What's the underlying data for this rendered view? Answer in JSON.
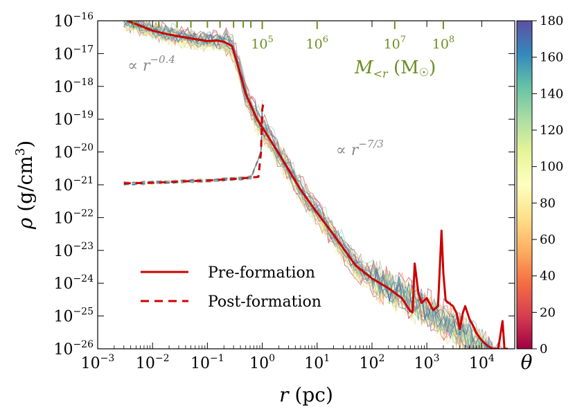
{
  "chart_data": {
    "type": "line",
    "xlabel": "r (pc)",
    "ylabel": "ρ (g/cm³)",
    "xscale": "log",
    "yscale": "log",
    "xlim": [
      0.001,
      40000
    ],
    "ylim": [
      1e-26,
      1e-16
    ],
    "x_ticks": [
      0.001,
      0.01,
      0.1,
      1,
      10,
      100,
      1000,
      10000
    ],
    "x_tick_exponents": [
      "−3",
      "−2",
      "−1",
      "0",
      "1",
      "2",
      "3",
      "4"
    ],
    "y_ticks": [
      1e-26,
      1e-25,
      1e-24,
      1e-23,
      1e-22,
      1e-21,
      1e-20,
      1e-19,
      1e-18,
      1e-17,
      1e-16
    ],
    "y_tick_exponents": [
      "−26",
      "−25",
      "−24",
      "−23",
      "−22",
      "−21",
      "−20",
      "−19",
      "−18",
      "−17",
      "−16"
    ],
    "top_axis": {
      "label": "M<r (M☉)",
      "color": "#6b8e23",
      "ticks": [
        {
          "label_exp": "5",
          "r": 1.0
        },
        {
          "label_exp": "6",
          "r": 10.0
        },
        {
          "label_exp": "7",
          "r": 260
        },
        {
          "label_exp": "8",
          "r": 2000
        }
      ],
      "minor_tick_r": [
        0.0045,
        0.013,
        0.028,
        0.05,
        0.1,
        0.17,
        0.3,
        0.45,
        0.62
      ]
    },
    "colorbar": {
      "label": "θ",
      "min": 0,
      "max": 180,
      "ticks": [
        0,
        20,
        40,
        60,
        80,
        100,
        120,
        140,
        160,
        180
      ],
      "colormap": "Spectral"
    },
    "annotations": [
      {
        "text_prefix": "∝ r",
        "text_exp": "−0.4",
        "x": 0.0035,
        "y": 3e-18
      },
      {
        "text_prefix": "∝ r",
        "text_exp": "−7/3",
        "x": 22,
        "y": 8e-21
      }
    ],
    "legend": {
      "position": "lower-left",
      "entries": [
        {
          "label": "Pre-formation",
          "style": "solid",
          "color": "#cc0000"
        },
        {
          "label": "Post-formation",
          "style": "dashed",
          "color": "#cc0000"
        }
      ]
    },
    "series": [
      {
        "name": "Pre-formation",
        "style": "solid",
        "color": "#cc0000",
        "x": [
          0.0035,
          0.006,
          0.01,
          0.02,
          0.05,
          0.1,
          0.15,
          0.2,
          0.28,
          0.35,
          0.5,
          0.8,
          1.2,
          2,
          5,
          10,
          20,
          50,
          100,
          200,
          350,
          500,
          550,
          600,
          700,
          800,
          1000,
          1300,
          1600,
          1850,
          2000,
          2200,
          2500,
          3000,
          3500,
          4000,
          4500,
          5000,
          6000,
          7000,
          8000,
          10000,
          13000,
          16000,
          20000,
          24000,
          26000,
          28000,
          30000
        ],
        "y": [
          1e-16,
          7e-17,
          5e-17,
          3.8e-17,
          2.9e-17,
          2.4e-17,
          2.5e-17,
          2.3e-17,
          1.7e-17,
          5e-18,
          6e-19,
          1e-19,
          3.5e-20,
          9e-21,
          7e-22,
          1.4e-22,
          3e-23,
          3.5e-24,
          1.4e-24,
          7e-25,
          3.5e-25,
          1.4e-25,
          1.3e-25,
          4e-24,
          5e-25,
          2.5e-25,
          3.5e-25,
          1.5e-25,
          2e-25,
          4e-23,
          2e-24,
          3e-25,
          2.5e-25,
          2e-25,
          1.2e-25,
          4e-26,
          1.2e-25,
          2e-25,
          8e-26,
          5e-26,
          3e-26,
          1.8e-26,
          1.2e-26,
          1e-26,
          1e-26,
          7e-26,
          1e-26,
          1e-26,
          1e-26
        ]
      },
      {
        "name": "Post-formation",
        "style": "dashed",
        "color": "#cc0000",
        "x": [
          0.003,
          0.01,
          0.03,
          0.1,
          0.3,
          0.5,
          0.85,
          0.95,
          1.0,
          1.05
        ],
        "y": [
          1.1e-21,
          1.15e-21,
          1.25e-21,
          1.35e-21,
          1.5e-21,
          1.6e-21,
          1.75e-21,
          1e-20,
          2e-19,
          3e-19
        ]
      }
    ]
  }
}
